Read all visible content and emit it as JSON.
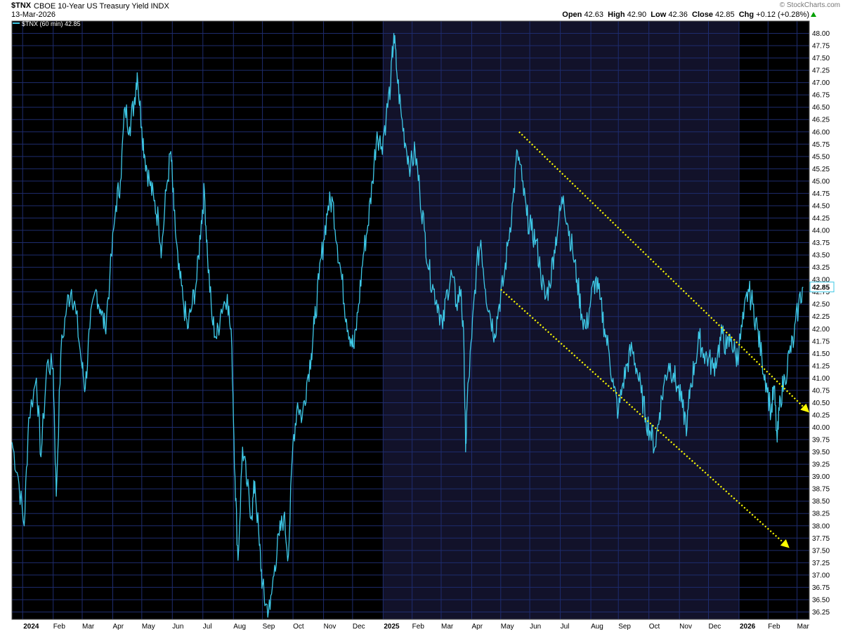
{
  "header": {
    "symbol": "$TNX",
    "description": "CBOE 10-Year US Treasury Yield INDX",
    "date": "13-Mar-2026",
    "brand": "© StockCharts.com",
    "open_label": "Open",
    "open": "42.63",
    "high_label": "High",
    "high": "42.90",
    "low_label": "Low",
    "low": "42.36",
    "close_label": "Close",
    "close": "42.85",
    "chg_label": "Chg",
    "chg": "+0.12 (+0.28%)",
    "chg_color": "#00a000"
  },
  "legend": {
    "label": "$TNX (60 min) 42.85"
  },
  "colors": {
    "background": "#000000",
    "shaded_background": "#12122a",
    "grid": "#1e2c6e",
    "line": "#3ec8e6",
    "trendline": "#ffff00",
    "axis_text": "#000000"
  },
  "chart_data": {
    "type": "line",
    "title": "$TNX CBOE 10-Year US Treasury Yield INDX",
    "series_name": "$TNX (60 min)",
    "last_value": 42.85,
    "ylim": [
      36.1,
      48.25
    ],
    "y_ticks": [
      36.25,
      36.5,
      36.75,
      37.0,
      37.25,
      37.5,
      37.75,
      38.0,
      38.25,
      38.5,
      38.75,
      39.0,
      39.25,
      39.5,
      39.75,
      40.0,
      40.25,
      40.5,
      40.75,
      41.0,
      41.25,
      41.5,
      41.75,
      42.0,
      42.25,
      42.5,
      42.75,
      43.0,
      43.25,
      43.5,
      43.75,
      44.0,
      44.25,
      44.5,
      44.75,
      45.0,
      45.25,
      45.5,
      45.75,
      46.0,
      46.25,
      46.5,
      46.75,
      47.0,
      47.25,
      47.5,
      47.75,
      48.0
    ],
    "x_ticks": [
      {
        "label": "2024",
        "t": 0.0,
        "bold": true
      },
      {
        "label": "Feb",
        "t": 1.0
      },
      {
        "label": "Mar",
        "t": 1.95
      },
      {
        "label": "Apr",
        "t": 2.95
      },
      {
        "label": "May",
        "t": 3.9
      },
      {
        "label": "Jun",
        "t": 4.9
      },
      {
        "label": "Jul",
        "t": 5.9
      },
      {
        "label": "Aug",
        "t": 6.9
      },
      {
        "label": "Sep",
        "t": 7.85
      },
      {
        "label": "Oct",
        "t": 8.85
      },
      {
        "label": "Nov",
        "t": 9.85
      },
      {
        "label": "Dec",
        "t": 10.8
      },
      {
        "label": "2025",
        "t": 11.8,
        "bold": true
      },
      {
        "label": "Feb",
        "t": 12.75
      },
      {
        "label": "Mar",
        "t": 13.7
      },
      {
        "label": "Apr",
        "t": 14.7
      },
      {
        "label": "May",
        "t": 15.65
      },
      {
        "label": "Jun",
        "t": 16.6
      },
      {
        "label": "Jul",
        "t": 17.6
      },
      {
        "label": "Aug",
        "t": 18.6
      },
      {
        "label": "Sep",
        "t": 19.5
      },
      {
        "label": "Oct",
        "t": 20.5
      },
      {
        "label": "Nov",
        "t": 21.5
      },
      {
        "label": "Dec",
        "t": 22.45
      },
      {
        "label": "2026",
        "t": 23.45,
        "bold": true
      },
      {
        "label": "Feb",
        "t": 24.4
      },
      {
        "label": "Mar",
        "t": 25.35
      }
    ],
    "x_range": [
      -0.35,
      25.75
    ],
    "shaded_range": [
      11.8,
      23.45
    ],
    "points": [
      [
        -0.35,
        39.7
      ],
      [
        -0.15,
        39.0
      ],
      [
        0.05,
        38.0
      ],
      [
        0.2,
        40.2
      ],
      [
        0.45,
        41.0
      ],
      [
        0.6,
        39.4
      ],
      [
        0.8,
        41.3
      ],
      [
        1.0,
        41.2
      ],
      [
        1.1,
        38.6
      ],
      [
        1.25,
        41.5
      ],
      [
        1.45,
        42.5
      ],
      [
        1.6,
        42.8
      ],
      [
        1.75,
        42.3
      ],
      [
        1.95,
        41.2
      ],
      [
        2.05,
        40.8
      ],
      [
        2.2,
        42.0
      ],
      [
        2.4,
        42.8
      ],
      [
        2.55,
        42.4
      ],
      [
        2.7,
        42.0
      ],
      [
        2.85,
        43.0
      ],
      [
        3.05,
        44.5
      ],
      [
        3.2,
        45.0
      ],
      [
        3.35,
        46.5
      ],
      [
        3.5,
        46.1
      ],
      [
        3.65,
        46.6
      ],
      [
        3.75,
        47.2
      ],
      [
        3.9,
        46.1
      ],
      [
        4.0,
        45.5
      ],
      [
        4.15,
        45.0
      ],
      [
        4.3,
        44.6
      ],
      [
        4.45,
        44.2
      ],
      [
        4.55,
        43.6
      ],
      [
        4.7,
        44.8
      ],
      [
        4.85,
        45.6
      ],
      [
        4.95,
        44.4
      ],
      [
        5.1,
        43.2
      ],
      [
        5.25,
        42.6
      ],
      [
        5.4,
        42.0
      ],
      [
        5.55,
        42.5
      ],
      [
        5.7,
        43.0
      ],
      [
        5.85,
        44.2
      ],
      [
        5.95,
        44.8
      ],
      [
        6.05,
        43.5
      ],
      [
        6.2,
        42.2
      ],
      [
        6.35,
        41.8
      ],
      [
        6.5,
        42.4
      ],
      [
        6.7,
        42.7
      ],
      [
        6.85,
        41.6
      ],
      [
        6.95,
        39.0
      ],
      [
        7.05,
        37.3
      ],
      [
        7.2,
        39.6
      ],
      [
        7.35,
        38.8
      ],
      [
        7.5,
        38.2
      ],
      [
        7.6,
        38.9
      ],
      [
        7.75,
        37.6
      ],
      [
        7.85,
        36.8
      ],
      [
        7.95,
        36.4
      ],
      [
        8.1,
        36.3
      ],
      [
        8.25,
        37.2
      ],
      [
        8.4,
        37.8
      ],
      [
        8.55,
        38.2
      ],
      [
        8.7,
        37.4
      ],
      [
        8.85,
        39.7
      ],
      [
        9.0,
        40.5
      ],
      [
        9.15,
        40.2
      ],
      [
        9.3,
        40.9
      ],
      [
        9.45,
        41.5
      ],
      [
        9.55,
        42.1
      ],
      [
        9.7,
        43.0
      ],
      [
        9.85,
        43.8
      ],
      [
        10.0,
        44.5
      ],
      [
        10.15,
        44.6
      ],
      [
        10.3,
        43.7
      ],
      [
        10.45,
        43.0
      ],
      [
        10.6,
        42.2
      ],
      [
        10.75,
        41.8
      ],
      [
        10.85,
        41.6
      ],
      [
        11.0,
        42.5
      ],
      [
        11.15,
        43.5
      ],
      [
        11.3,
        44.1
      ],
      [
        11.45,
        45.0
      ],
      [
        11.6,
        46.0
      ],
      [
        11.75,
        45.7
      ],
      [
        11.9,
        46.3
      ],
      [
        12.05,
        47.0
      ],
      [
        12.15,
        48.0
      ],
      [
        12.25,
        47.2
      ],
      [
        12.4,
        46.3
      ],
      [
        12.55,
        45.7
      ],
      [
        12.7,
        45.3
      ],
      [
        12.85,
        45.6
      ],
      [
        13.0,
        44.8
      ],
      [
        13.15,
        44.0
      ],
      [
        13.3,
        43.2
      ],
      [
        13.45,
        42.8
      ],
      [
        13.6,
        42.5
      ],
      [
        13.75,
        42.0
      ],
      [
        13.9,
        42.8
      ],
      [
        14.05,
        43.1
      ],
      [
        14.2,
        42.5
      ],
      [
        14.35,
        42.8
      ],
      [
        14.45,
        41.5
      ],
      [
        14.5,
        39.5
      ],
      [
        14.55,
        40.5
      ],
      [
        14.7,
        41.8
      ],
      [
        14.85,
        43.2
      ],
      [
        15.0,
        43.8
      ],
      [
        15.15,
        42.8
      ],
      [
        15.3,
        42.3
      ],
      [
        15.45,
        41.9
      ],
      [
        15.6,
        42.5
      ],
      [
        15.75,
        43.0
      ],
      [
        15.9,
        43.8
      ],
      [
        16.05,
        44.6
      ],
      [
        16.2,
        45.6
      ],
      [
        16.35,
        45.0
      ],
      [
        16.5,
        44.3
      ],
      [
        16.65,
        44.0
      ],
      [
        16.8,
        43.8
      ],
      [
        16.95,
        43.2
      ],
      [
        17.1,
        42.6
      ],
      [
        17.25,
        42.9
      ],
      [
        17.4,
        43.6
      ],
      [
        17.55,
        44.2
      ],
      [
        17.7,
        44.7
      ],
      [
        17.85,
        44.1
      ],
      [
        18.0,
        43.6
      ],
      [
        18.15,
        43.0
      ],
      [
        18.3,
        42.3
      ],
      [
        18.45,
        42.0
      ],
      [
        18.6,
        42.6
      ],
      [
        18.75,
        43.0
      ],
      [
        18.9,
        42.6
      ],
      [
        19.05,
        42.0
      ],
      [
        19.2,
        41.5
      ],
      [
        19.35,
        40.8
      ],
      [
        19.5,
        40.3
      ],
      [
        19.65,
        40.9
      ],
      [
        19.8,
        41.3
      ],
      [
        19.95,
        41.6
      ],
      [
        20.1,
        41.2
      ],
      [
        20.25,
        40.7
      ],
      [
        20.4,
        40.2
      ],
      [
        20.55,
        39.9
      ],
      [
        20.7,
        39.6
      ],
      [
        20.85,
        40.3
      ],
      [
        21.0,
        40.9
      ],
      [
        21.15,
        41.3
      ],
      [
        21.3,
        41.1
      ],
      [
        21.45,
        40.8
      ],
      [
        21.6,
        40.4
      ],
      [
        21.75,
        40.0
      ],
      [
        21.85,
        40.8
      ],
      [
        22.0,
        41.3
      ],
      [
        22.15,
        41.8
      ],
      [
        22.3,
        41.5
      ],
      [
        22.45,
        41.4
      ],
      [
        22.6,
        41.2
      ],
      [
        22.75,
        41.5
      ],
      [
        22.9,
        41.9
      ],
      [
        23.05,
        41.6
      ],
      [
        23.2,
        41.8
      ],
      [
        23.35,
        41.4
      ],
      [
        23.45,
        41.6
      ],
      [
        23.6,
        42.2
      ],
      [
        23.75,
        42.8
      ],
      [
        23.9,
        42.5
      ],
      [
        24.05,
        42.0
      ],
      [
        24.2,
        41.4
      ],
      [
        24.35,
        40.9
      ],
      [
        24.5,
        40.3
      ],
      [
        24.6,
        40.8
      ],
      [
        24.7,
        39.7
      ],
      [
        24.8,
        40.6
      ],
      [
        24.95,
        41.0
      ],
      [
        25.1,
        41.5
      ],
      [
        25.25,
        41.8
      ],
      [
        25.4,
        42.5
      ],
      [
        25.55,
        42.85
      ]
    ],
    "trendlines": [
      {
        "x1": 16.25,
        "y1": 46.0,
        "x2": 25.75,
        "y2": 40.3,
        "arrow": true
      },
      {
        "x1": 15.65,
        "y1": 42.8,
        "x2": 25.1,
        "y2": 37.55,
        "arrow": true
      }
    ],
    "price_label": "42.85"
  }
}
